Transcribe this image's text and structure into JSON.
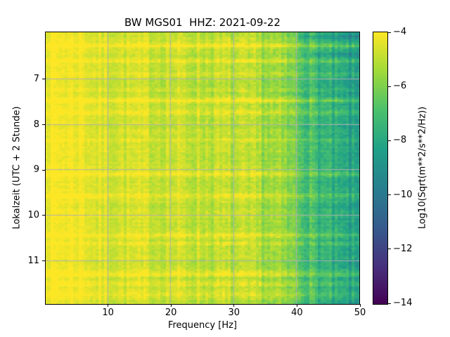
{
  "figure": {
    "background": "#ffffff",
    "text_color": "#000000"
  },
  "chart_data": {
    "type": "heatmap",
    "subtype": "spectrogram",
    "title": "BW MGS01  HHZ: 2021-09-22",
    "xlabel": "Frequency [Hz]",
    "ylabel": "Lokalzeit (UTC + 2 Stunde)",
    "colorbar_label": "Log10(Sqrt(m**2/s**2/Hz))",
    "x_range": [
      0,
      50
    ],
    "x_ticks": [
      10,
      20,
      30,
      40,
      50
    ],
    "y_range": [
      5.95,
      11.95
    ],
    "y_ticks": [
      7,
      8,
      9,
      10,
      11
    ],
    "c_range": [
      -14,
      -4
    ],
    "c_ticks": [
      -4,
      -6,
      -8,
      -10,
      -12,
      -14
    ],
    "c_tick_labels": [
      "−4",
      "−6",
      "−8",
      "−10",
      "−12",
      "−14"
    ],
    "grid": true,
    "grid_color": "#b0b0b0",
    "colormap": "viridis",
    "colormap_stops": [
      "#440154",
      "#46327e",
      "#365c8d",
      "#277f8e",
      "#1fa187",
      "#4ac16d",
      "#a0da39",
      "#fde725"
    ],
    "freq_profile_log10": [
      [
        0,
        -4.15
      ],
      [
        6,
        -4.2
      ],
      [
        8,
        -4.55
      ],
      [
        12,
        -4.7
      ],
      [
        18,
        -4.8
      ],
      [
        24,
        -4.95
      ],
      [
        30,
        -5.15
      ],
      [
        34,
        -5.35
      ],
      [
        37,
        -5.7
      ],
      [
        39,
        -6.1
      ],
      [
        41,
        -6.7
      ],
      [
        43,
        -7.3
      ],
      [
        45,
        -7.8
      ],
      [
        47,
        -8.2
      ],
      [
        50,
        -8.6
      ]
    ],
    "time_events": [
      {
        "t": 6.08,
        "amp": -0.7,
        "f_min": 40
      },
      {
        "t": 6.26,
        "amp": 0.9,
        "f_min": 0
      },
      {
        "t": 6.45,
        "amp": -0.6,
        "f_min": 42
      },
      {
        "t": 6.6,
        "amp": 0.6,
        "f_min": 0
      },
      {
        "t": 6.88,
        "amp": 0.5,
        "f_min": 0
      },
      {
        "t": 7.47,
        "amp": 1.0,
        "f_min": 0
      },
      {
        "t": 7.73,
        "amp": 0.6,
        "f_min": 0
      },
      {
        "t": 8.35,
        "amp": 0.4,
        "f_min": 0
      },
      {
        "t": 9.08,
        "amp": 0.8,
        "f_min": 0
      },
      {
        "t": 9.56,
        "amp": 0.9,
        "f_min": 0
      },
      {
        "t": 10.44,
        "amp": 0.7,
        "f_min": 0
      },
      {
        "t": 10.63,
        "amp": 0.5,
        "f_min": 0
      },
      {
        "t": 11.29,
        "amp": 0.8,
        "f_min": 0
      },
      {
        "t": 11.51,
        "amp": 0.5,
        "f_min": 0
      },
      {
        "t": 11.76,
        "amp": 0.7,
        "f_min": 0
      }
    ],
    "event_sigma_hours": 0.035,
    "noise": {
      "seed": 7,
      "column_jitter": 0.28,
      "row_jitter": 0.13,
      "pixel_jitter": 0.2,
      "freq_noise_gain": 1.25
    },
    "render_grid": {
      "cols": 112,
      "rows": 140
    }
  }
}
